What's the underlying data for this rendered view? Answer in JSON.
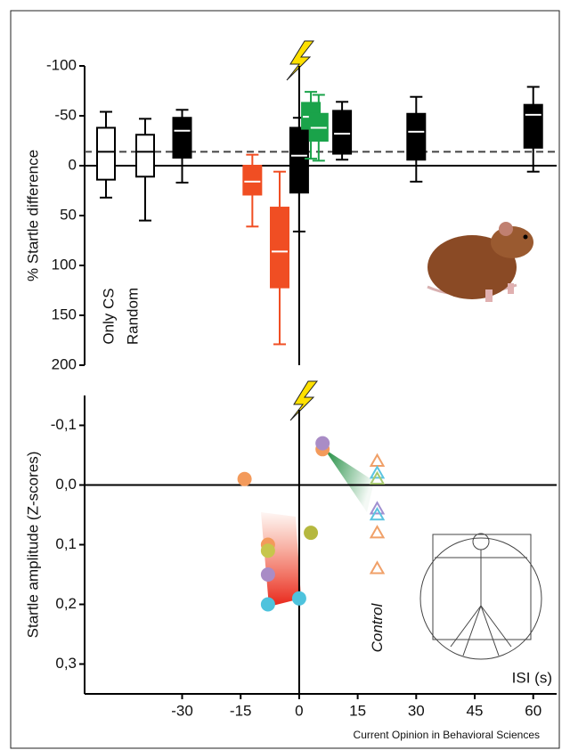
{
  "chart_data": [
    {
      "type": "box",
      "ylabel": "% Startle difference",
      "ylim": [
        -100,
        200
      ],
      "y_inverted": true,
      "yticks": [
        -100,
        -50,
        0,
        50,
        100,
        150,
        200
      ],
      "xlim": [
        -55,
        66
      ],
      "reference_line": -14,
      "boxes": [
        {
          "label": "Only CS",
          "whisker_low": -54,
          "q1": -38,
          "median": -14,
          "q3": 14,
          "whisker_high": 32,
          "color": "#ffffff",
          "edge": "#000000"
        },
        {
          "label": "Random",
          "whisker_low": -47,
          "q1": -31,
          "median": -14,
          "q3": 11,
          "whisker_high": 55,
          "color": "#ffffff",
          "edge": "#000000"
        },
        {
          "x": -30,
          "whisker_low": -56,
          "q1": -48,
          "median": -35,
          "q3": -8,
          "whisker_high": 17,
          "color": "#000000",
          "edge": "#000000"
        },
        {
          "x": -12,
          "whisker_low": -11,
          "q1": 0,
          "median": 16,
          "q3": 29,
          "whisker_high": 61,
          "color": "#f04e23",
          "edge": "#f04e23"
        },
        {
          "x": -5,
          "whisker_low": 6,
          "q1": 42,
          "median": 86,
          "q3": 122,
          "whisker_high": 179,
          "color": "#f04e23",
          "edge": "#f04e23"
        },
        {
          "x": 0,
          "whisker_low": -48,
          "q1": -38,
          "median": -10,
          "q3": 27,
          "whisker_high": 66,
          "color": "#000000",
          "edge": "#000000"
        },
        {
          "x": 3,
          "whisker_low": -74,
          "q1": -63,
          "median": -49,
          "q3": -37,
          "whisker_high": -7,
          "color": "#1aa34a",
          "edge": "#1aa34a"
        },
        {
          "x": 5,
          "whisker_low": -71,
          "q1": -52,
          "median": -38,
          "q3": -25,
          "whisker_high": -5,
          "color": "#1aa34a",
          "edge": "#1aa34a"
        },
        {
          "x": 11,
          "whisker_low": -64,
          "q1": -55,
          "median": -32,
          "q3": -12,
          "whisker_high": -6,
          "color": "#000000",
          "edge": "#000000"
        },
        {
          "x": 30,
          "whisker_low": -69,
          "q1": -52,
          "median": -34,
          "q3": -6,
          "whisker_high": 16,
          "color": "#000000",
          "edge": "#000000"
        },
        {
          "x": 60,
          "whisker_low": -79,
          "q1": -61,
          "median": -51,
          "q3": -18,
          "whisker_high": 6,
          "color": "#000000",
          "edge": "#000000"
        }
      ]
    },
    {
      "type": "scatter",
      "ylabel": "Startle amplitude (Z-scores)",
      "xlabel": "ISI (s)",
      "ylim": [
        -0.15,
        0.35
      ],
      "y_inverted": true,
      "yticks": [
        {
          "value": -0.1,
          "label": "-0,1"
        },
        {
          "value": 0,
          "label": "0,0"
        },
        {
          "value": 0.1,
          "label": "0,1"
        },
        {
          "value": 0.2,
          "label": "0,2"
        },
        {
          "value": 0.3,
          "label": "0,3"
        }
      ],
      "xlim": [
        -55,
        66
      ],
      "xticks": [
        -30,
        -15,
        0,
        15,
        30,
        45,
        60
      ],
      "points": {
        "x": [
          -14,
          -8,
          -8,
          -8,
          -8,
          0,
          3,
          6,
          6
        ],
        "y": [
          -0.01,
          0.1,
          0.11,
          0.15,
          0.2,
          0.19,
          0.08,
          -0.06,
          -0.07
        ],
        "colors": [
          "#f39a5b",
          "#f39a5b",
          "#c7c64c",
          "#a98cc6",
          "#4ec3dd",
          "#4ec3dd",
          "#b5b83f",
          "#f39a5b",
          "#a98cc6"
        ]
      },
      "control_label": "Control",
      "control": {
        "x": 20,
        "y": [
          -0.04,
          -0.02,
          -0.01,
          0.04,
          0.05,
          0.08,
          0.14
        ],
        "colors": [
          "#f0a068",
          "#5bc4e0",
          "#a8c870",
          "#a090d0",
          "#5bc4e0",
          "#f0a068",
          "#f0a068"
        ]
      }
    }
  ],
  "footer": "Current Opinion in Behavioral Sciences"
}
